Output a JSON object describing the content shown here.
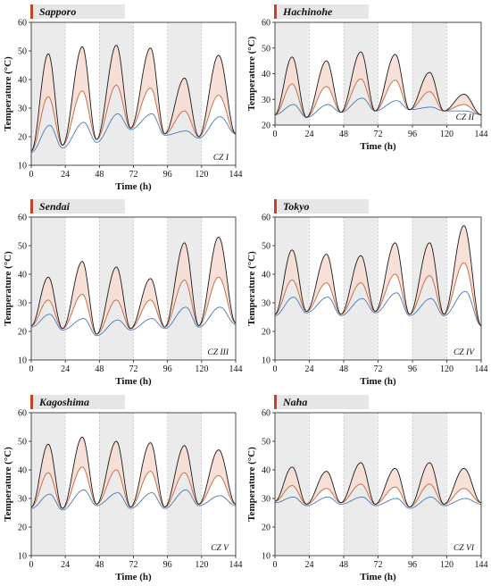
{
  "figure": {
    "y_axis_label": "Temperature (°C)",
    "x_axis_label": "Time (h)",
    "x_ticks": [
      0,
      24,
      48,
      72,
      96,
      120,
      144
    ],
    "y_ticks": [
      10,
      20,
      30,
      40,
      50,
      60
    ],
    "colors": {
      "title_bar_bg": "#e6e6e6",
      "title_accent": "#c1442a",
      "night_band": "#ebebeb",
      "top_series": "#1a1a1a",
      "middle_series": "#c8643c",
      "bottom_series": "#4a78b4",
      "fill_between": "#f6ddd4"
    }
  },
  "chart_data": [
    {
      "type": "line",
      "title": "Sapporo",
      "zone_label": "CZ I",
      "xlabel": "Time (h)",
      "ylabel": "Temperature (°C)",
      "xlim": [
        0,
        144
      ],
      "ylim": [
        10,
        60
      ],
      "shaded_intervals": [
        [
          0,
          24
        ],
        [
          48,
          72
        ],
        [
          96,
          120
        ]
      ],
      "grid": false,
      "series": [
        {
          "values": [
            {
              "min_hour": 0,
              "min": 15,
              "max_hour": 12,
              "max": 49
            },
            {
              "min_hour": 22,
              "min": 17,
              "max_hour": 36,
              "max": 51.5
            },
            {
              "min_hour": 46,
              "min": 19,
              "max_hour": 60,
              "max": 52
            },
            {
              "min_hour": 70,
              "min": 23,
              "max_hour": 84,
              "max": 51
            },
            {
              "min_hour": 94,
              "min": 21,
              "max_hour": 108,
              "max": 40.5
            },
            {
              "min_hour": 118,
              "min": 20,
              "max_hour": 132,
              "max": 48.5
            }
          ],
          "end": 21
        },
        {
          "values": [
            {
              "min_hour": 0,
              "min": 15,
              "max_hour": 12,
              "max": 34
            },
            {
              "min_hour": 22,
              "min": 17,
              "max_hour": 36,
              "max": 36
            },
            {
              "min_hour": 46,
              "min": 19,
              "max_hour": 60,
              "max": 38
            },
            {
              "min_hour": 70,
              "min": 23,
              "max_hour": 84,
              "max": 37
            },
            {
              "min_hour": 94,
              "min": 21,
              "max_hour": 108,
              "max": 29
            },
            {
              "min_hour": 118,
              "min": 20,
              "max_hour": 132,
              "max": 34.5
            }
          ],
          "end": 21
        },
        {
          "values": [
            {
              "min_hour": 0,
              "min": 14.5,
              "max_hour": 13,
              "max": 24
            },
            {
              "min_hour": 22,
              "min": 16,
              "max_hour": 37,
              "max": 25
            },
            {
              "min_hour": 46,
              "min": 18,
              "max_hour": 61,
              "max": 28
            },
            {
              "min_hour": 70,
              "min": 22.5,
              "max_hour": 85,
              "max": 28
            },
            {
              "min_hour": 94,
              "min": 20.5,
              "max_hour": 109,
              "max": 22
            },
            {
              "min_hour": 118,
              "min": 19.5,
              "max_hour": 133,
              "max": 27
            }
          ],
          "end": 21
        }
      ]
    },
    {
      "type": "line",
      "title": "Hachinohe",
      "zone_label": "CZ II",
      "xlabel": "Time (h)",
      "ylabel": "Temperature (°C)",
      "xlim": [
        0,
        144
      ],
      "ylim": [
        20,
        60
      ],
      "shaded_intervals": [
        [
          0,
          24
        ],
        [
          48,
          72
        ],
        [
          96,
          120
        ]
      ],
      "grid": false,
      "series": [
        {
          "values": [
            {
              "min_hour": 0,
              "min": 24,
              "max_hour": 12,
              "max": 46.5
            },
            {
              "min_hour": 22,
              "min": 23,
              "max_hour": 36,
              "max": 45
            },
            {
              "min_hour": 46,
              "min": 25,
              "max_hour": 60,
              "max": 48.5
            },
            {
              "min_hour": 70,
              "min": 25.5,
              "max_hour": 84,
              "max": 47.5
            },
            {
              "min_hour": 94,
              "min": 26,
              "max_hour": 108,
              "max": 40.5
            },
            {
              "min_hour": 118,
              "min": 25.5,
              "max_hour": 132,
              "max": 32
            }
          ],
          "end": 24
        },
        {
          "values": [
            {
              "min_hour": 0,
              "min": 24,
              "max_hour": 12,
              "max": 36
            },
            {
              "min_hour": 22,
              "min": 23,
              "max_hour": 36,
              "max": 35
            },
            {
              "min_hour": 46,
              "min": 25,
              "max_hour": 60,
              "max": 38
            },
            {
              "min_hour": 70,
              "min": 25.5,
              "max_hour": 84,
              "max": 37.5
            },
            {
              "min_hour": 94,
              "min": 26,
              "max_hour": 108,
              "max": 33
            },
            {
              "min_hour": 118,
              "min": 25.5,
              "max_hour": 132,
              "max": 28
            }
          ],
          "end": 24
        },
        {
          "values": [
            {
              "min_hour": 0,
              "min": 24,
              "max_hour": 13,
              "max": 28
            },
            {
              "min_hour": 22,
              "min": 23,
              "max_hour": 37,
              "max": 28
            },
            {
              "min_hour": 46,
              "min": 25,
              "max_hour": 61,
              "max": 30.5
            },
            {
              "min_hour": 70,
              "min": 25.5,
              "max_hour": 85,
              "max": 29.5
            },
            {
              "min_hour": 94,
              "min": 26,
              "max_hour": 109,
              "max": 27
            },
            {
              "min_hour": 118,
              "min": 25.5,
              "max_hour": 133,
              "max": 25.5
            }
          ],
          "end": 24
        }
      ]
    },
    {
      "type": "line",
      "title": "Sendai",
      "zone_label": "CZ III",
      "xlabel": "Time (h)",
      "ylabel": "Temperature (°C)",
      "xlim": [
        0,
        144
      ],
      "ylim": [
        10,
        60
      ],
      "shaded_intervals": [
        [
          0,
          24
        ],
        [
          48,
          72
        ],
        [
          96,
          120
        ]
      ],
      "grid": false,
      "series": [
        {
          "values": [
            {
              "min_hour": 0,
              "min": 22,
              "max_hour": 12,
              "max": 39
            },
            {
              "min_hour": 22,
              "min": 21,
              "max_hour": 36,
              "max": 44.5
            },
            {
              "min_hour": 46,
              "min": 19,
              "max_hour": 60,
              "max": 42.5
            },
            {
              "min_hour": 70,
              "min": 21,
              "max_hour": 84,
              "max": 38.5
            },
            {
              "min_hour": 94,
              "min": 21.5,
              "max_hour": 108,
              "max": 51
            },
            {
              "min_hour": 118,
              "min": 22,
              "max_hour": 132,
              "max": 53
            }
          ],
          "end": 23
        },
        {
          "values": [
            {
              "min_hour": 0,
              "min": 22,
              "max_hour": 12,
              "max": 31
            },
            {
              "min_hour": 22,
              "min": 21,
              "max_hour": 36,
              "max": 33
            },
            {
              "min_hour": 46,
              "min": 19,
              "max_hour": 60,
              "max": 31
            },
            {
              "min_hour": 70,
              "min": 21,
              "max_hour": 84,
              "max": 31
            },
            {
              "min_hour": 94,
              "min": 21.5,
              "max_hour": 108,
              "max": 38
            },
            {
              "min_hour": 118,
              "min": 22,
              "max_hour": 132,
              "max": 39
            }
          ],
          "end": 23
        },
        {
          "values": [
            {
              "min_hour": 0,
              "min": 21.5,
              "max_hour": 13,
              "max": 26
            },
            {
              "min_hour": 22,
              "min": 20.5,
              "max_hour": 37,
              "max": 24.5
            },
            {
              "min_hour": 46,
              "min": 18.5,
              "max_hour": 61,
              "max": 24
            },
            {
              "min_hour": 70,
              "min": 20.5,
              "max_hour": 85,
              "max": 24.5
            },
            {
              "min_hour": 94,
              "min": 21,
              "max_hour": 109,
              "max": 28.5
            },
            {
              "min_hour": 118,
              "min": 21.5,
              "max_hour": 133,
              "max": 28.5
            }
          ],
          "end": 22.5
        }
      ]
    },
    {
      "type": "line",
      "title": "Tokyo",
      "zone_label": "CZ IV",
      "xlabel": "Time (h)",
      "ylabel": "Temperature (°C)",
      "xlim": [
        0,
        144
      ],
      "ylim": [
        10,
        60
      ],
      "shaded_intervals": [
        [
          0,
          24
        ],
        [
          48,
          72
        ],
        [
          96,
          120
        ]
      ],
      "grid": false,
      "series": [
        {
          "values": [
            {
              "min_hour": 0,
              "min": 26,
              "max_hour": 12,
              "max": 48.5
            },
            {
              "min_hour": 22,
              "min": 27,
              "max_hour": 36,
              "max": 47
            },
            {
              "min_hour": 46,
              "min": 26,
              "max_hour": 60,
              "max": 46.5
            },
            {
              "min_hour": 70,
              "min": 27,
              "max_hour": 84,
              "max": 51
            },
            {
              "min_hour": 94,
              "min": 26,
              "max_hour": 108,
              "max": 51
            },
            {
              "min_hour": 118,
              "min": 26,
              "max_hour": 132,
              "max": 57
            }
          ],
          "end": 22
        },
        {
          "values": [
            {
              "min_hour": 0,
              "min": 26,
              "max_hour": 12,
              "max": 38
            },
            {
              "min_hour": 22,
              "min": 27,
              "max_hour": 36,
              "max": 37
            },
            {
              "min_hour": 46,
              "min": 26,
              "max_hour": 60,
              "max": 37
            },
            {
              "min_hour": 70,
              "min": 27,
              "max_hour": 84,
              "max": 40
            },
            {
              "min_hour": 94,
              "min": 26,
              "max_hour": 108,
              "max": 39.5
            },
            {
              "min_hour": 118,
              "min": 26,
              "max_hour": 132,
              "max": 44
            }
          ],
          "end": 22
        },
        {
          "values": [
            {
              "min_hour": 0,
              "min": 25.5,
              "max_hour": 13,
              "max": 32
            },
            {
              "min_hour": 22,
              "min": 26.5,
              "max_hour": 37,
              "max": 32
            },
            {
              "min_hour": 46,
              "min": 25.5,
              "max_hour": 61,
              "max": 31.5
            },
            {
              "min_hour": 70,
              "min": 26.5,
              "max_hour": 85,
              "max": 33.5
            },
            {
              "min_hour": 94,
              "min": 25.5,
              "max_hour": 109,
              "max": 31.5
            },
            {
              "min_hour": 118,
              "min": 25.5,
              "max_hour": 133,
              "max": 34
            }
          ],
          "end": 22
        }
      ]
    },
    {
      "type": "line",
      "title": "Kagoshima",
      "zone_label": "CZ V",
      "xlabel": "Time (h)",
      "ylabel": "Temperature (°C)",
      "xlim": [
        0,
        144
      ],
      "ylim": [
        10,
        60
      ],
      "shaded_intervals": [
        [
          0,
          24
        ],
        [
          48,
          72
        ],
        [
          96,
          120
        ]
      ],
      "grid": false,
      "series": [
        {
          "values": [
            {
              "min_hour": 0,
              "min": 27,
              "max_hour": 12,
              "max": 49
            },
            {
              "min_hour": 22,
              "min": 26.5,
              "max_hour": 36,
              "max": 51.5
            },
            {
              "min_hour": 46,
              "min": 28,
              "max_hour": 60,
              "max": 50
            },
            {
              "min_hour": 70,
              "min": 27,
              "max_hour": 84,
              "max": 49.5
            },
            {
              "min_hour": 94,
              "min": 27,
              "max_hour": 108,
              "max": 48.5
            },
            {
              "min_hour": 118,
              "min": 28,
              "max_hour": 132,
              "max": 47
            }
          ],
          "end": 28
        },
        {
          "values": [
            {
              "min_hour": 0,
              "min": 27,
              "max_hour": 12,
              "max": 39
            },
            {
              "min_hour": 22,
              "min": 26.5,
              "max_hour": 36,
              "max": 41
            },
            {
              "min_hour": 46,
              "min": 28,
              "max_hour": 60,
              "max": 40
            },
            {
              "min_hour": 70,
              "min": 27,
              "max_hour": 84,
              "max": 39.5
            },
            {
              "min_hour": 94,
              "min": 27,
              "max_hour": 108,
              "max": 39
            },
            {
              "min_hour": 118,
              "min": 28,
              "max_hour": 132,
              "max": 38
            }
          ],
          "end": 28
        },
        {
          "values": [
            {
              "min_hour": 0,
              "min": 26.5,
              "max_hour": 13,
              "max": 31.5
            },
            {
              "min_hour": 22,
              "min": 26,
              "max_hour": 37,
              "max": 33
            },
            {
              "min_hour": 46,
              "min": 27.5,
              "max_hour": 61,
              "max": 32
            },
            {
              "min_hour": 70,
              "min": 26.5,
              "max_hour": 85,
              "max": 32
            },
            {
              "min_hour": 94,
              "min": 26.5,
              "max_hour": 109,
              "max": 33
            },
            {
              "min_hour": 118,
              "min": 27.5,
              "max_hour": 133,
              "max": 31
            }
          ],
          "end": 27.5
        }
      ]
    },
    {
      "type": "line",
      "title": "Naha",
      "zone_label": "CZ VI",
      "xlabel": "Time (h)",
      "ylabel": "Temperature (°C)",
      "xlim": [
        0,
        144
      ],
      "ylim": [
        10,
        60
      ],
      "shaded_intervals": [
        [
          0,
          24
        ],
        [
          48,
          72
        ],
        [
          96,
          120
        ]
      ],
      "grid": false,
      "series": [
        {
          "values": [
            {
              "min_hour": 0,
              "min": 29,
              "max_hour": 12,
              "max": 41
            },
            {
              "min_hour": 22,
              "min": 28,
              "max_hour": 36,
              "max": 39.5
            },
            {
              "min_hour": 46,
              "min": 28.5,
              "max_hour": 60,
              "max": 42.5
            },
            {
              "min_hour": 70,
              "min": 28,
              "max_hour": 84,
              "max": 40.5
            },
            {
              "min_hour": 94,
              "min": 27,
              "max_hour": 108,
              "max": 42.5
            },
            {
              "min_hour": 118,
              "min": 28,
              "max_hour": 132,
              "max": 40.5
            }
          ],
          "end": 28.5
        },
        {
          "values": [
            {
              "min_hour": 0,
              "min": 29,
              "max_hour": 12,
              "max": 34.5
            },
            {
              "min_hour": 22,
              "min": 28,
              "max_hour": 36,
              "max": 33.5
            },
            {
              "min_hour": 46,
              "min": 28.5,
              "max_hour": 60,
              "max": 35
            },
            {
              "min_hour": 70,
              "min": 28,
              "max_hour": 84,
              "max": 34
            },
            {
              "min_hour": 94,
              "min": 27,
              "max_hour": 108,
              "max": 35
            },
            {
              "min_hour": 118,
              "min": 28,
              "max_hour": 132,
              "max": 33.5
            }
          ],
          "end": 28.5
        },
        {
          "values": [
            {
              "min_hour": 0,
              "min": 28.5,
              "max_hour": 13,
              "max": 30.5
            },
            {
              "min_hour": 22,
              "min": 27.5,
              "max_hour": 37,
              "max": 30.5
            },
            {
              "min_hour": 46,
              "min": 28,
              "max_hour": 61,
              "max": 30.5
            },
            {
              "min_hour": 70,
              "min": 27.5,
              "max_hour": 85,
              "max": 30
            },
            {
              "min_hour": 94,
              "min": 26.5,
              "max_hour": 109,
              "max": 30.5
            },
            {
              "min_hour": 118,
              "min": 27.5,
              "max_hour": 133,
              "max": 30
            }
          ],
          "end": 28
        }
      ]
    }
  ]
}
